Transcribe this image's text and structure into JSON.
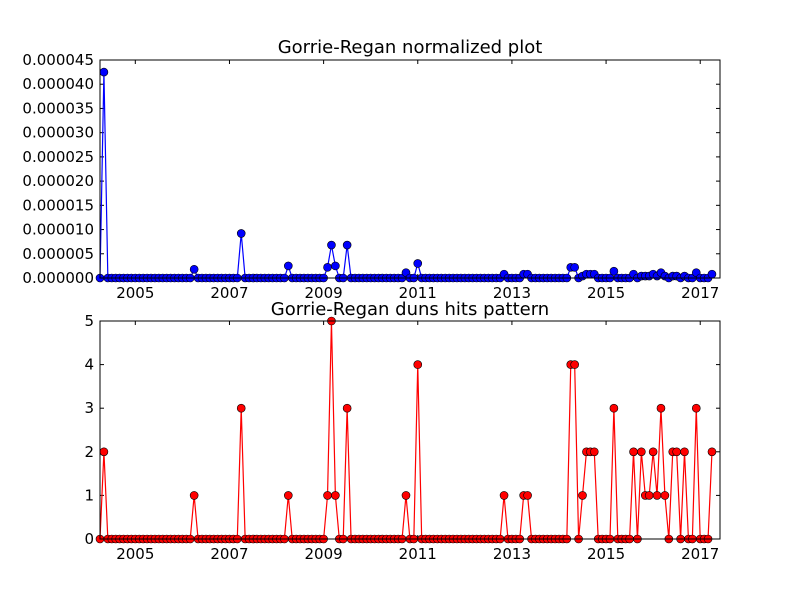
{
  "chart_data": [
    {
      "type": "line",
      "title": "Gorrie-Regan normalized plot",
      "xlabel": "",
      "ylabel": "",
      "xlim": [
        2004.25,
        2017.42
      ],
      "ylim": [
        0,
        4.5e-05
      ],
      "xticks": [
        "2005",
        "2007",
        "2009",
        "2011",
        "2013",
        "2015",
        "2017"
      ],
      "yticks": [
        "0.000000",
        "0.000005",
        "0.000010",
        "0.000015",
        "0.000020",
        "0.000025",
        "0.000030",
        "0.000035",
        "0.000040",
        "0.000045"
      ],
      "grid": false,
      "color": "#0000ff",
      "x_start": 2004.25,
      "x_step": 0.08333,
      "values": [
        0,
        4.25e-05,
        0,
        0,
        0,
        0,
        0,
        0,
        0,
        0,
        0,
        0,
        0,
        0,
        0,
        0,
        0,
        0,
        0,
        0,
        0,
        0,
        0,
        0,
        1.8e-06,
        0,
        0,
        0,
        0,
        0,
        0,
        0,
        0,
        0,
        0,
        0,
        9.2e-06,
        0,
        0,
        0,
        0,
        0,
        0,
        0,
        0,
        0,
        0,
        0,
        2.5e-06,
        0,
        0,
        0,
        0,
        0,
        0,
        0,
        0,
        0,
        2.2e-06,
        6.8e-06,
        2.5e-06,
        0,
        0,
        6.8e-06,
        0,
        0,
        0,
        0,
        0,
        0,
        0,
        0,
        0,
        0,
        0,
        0,
        0,
        0,
        1.1e-06,
        0,
        0,
        3e-06,
        0,
        0,
        0,
        0,
        0,
        0,
        0,
        0,
        0,
        0,
        0,
        0,
        0,
        0,
        0,
        0,
        0,
        0,
        0,
        0,
        0,
        8e-07,
        0,
        0,
        0,
        0,
        8e-07,
        8e-07,
        0,
        0,
        0,
        0,
        0,
        0,
        0,
        0,
        0,
        0,
        2.2e-06,
        2.2e-06,
        0,
        4e-07,
        8e-07,
        8e-07,
        8e-07,
        0,
        0,
        0,
        0,
        1.4e-06,
        0,
        0,
        0,
        0,
        8e-07,
        0,
        4e-07,
        4e-07,
        4e-07,
        8e-07,
        4e-07,
        1.1e-06,
        4e-07,
        0,
        4e-07,
        4e-07,
        0,
        4e-07,
        0,
        0,
        1.1e-06,
        0,
        0,
        0,
        8e-07
      ]
    },
    {
      "type": "line",
      "title": "Gorrie-Regan duns hits pattern",
      "xlabel": "",
      "ylabel": "",
      "xlim": [
        2004.25,
        2017.42
      ],
      "ylim": [
        0,
        5
      ],
      "xticks": [
        "2005",
        "2007",
        "2009",
        "2011",
        "2013",
        "2015",
        "2017"
      ],
      "yticks": [
        "0",
        "1",
        "2",
        "3",
        "4",
        "5"
      ],
      "grid": false,
      "color": "#ff0000",
      "x_start": 2004.25,
      "x_step": 0.08333,
      "values": [
        0,
        2,
        0,
        0,
        0,
        0,
        0,
        0,
        0,
        0,
        0,
        0,
        0,
        0,
        0,
        0,
        0,
        0,
        0,
        0,
        0,
        0,
        0,
        0,
        1,
        0,
        0,
        0,
        0,
        0,
        0,
        0,
        0,
        0,
        0,
        0,
        3,
        0,
        0,
        0,
        0,
        0,
        0,
        0,
        0,
        0,
        0,
        0,
        1,
        0,
        0,
        0,
        0,
        0,
        0,
        0,
        0,
        0,
        1,
        5,
        1,
        0,
        0,
        3,
        0,
        0,
        0,
        0,
        0,
        0,
        0,
        0,
        0,
        0,
        0,
        0,
        0,
        0,
        1,
        0,
        0,
        4,
        0,
        0,
        0,
        0,
        0,
        0,
        0,
        0,
        0,
        0,
        0,
        0,
        0,
        0,
        0,
        0,
        0,
        0,
        0,
        0,
        0,
        1,
        0,
        0,
        0,
        0,
        1,
        1,
        0,
        0,
        0,
        0,
        0,
        0,
        0,
        0,
        0,
        0,
        4,
        4,
        0,
        1,
        2,
        2,
        2,
        0,
        0,
        0,
        0,
        3,
        0,
        0,
        0,
        0,
        2,
        0,
        2,
        1,
        1,
        2,
        1,
        3,
        1,
        0,
        2,
        2,
        0,
        2,
        0,
        0,
        3,
        0,
        0,
        0,
        2
      ]
    }
  ]
}
